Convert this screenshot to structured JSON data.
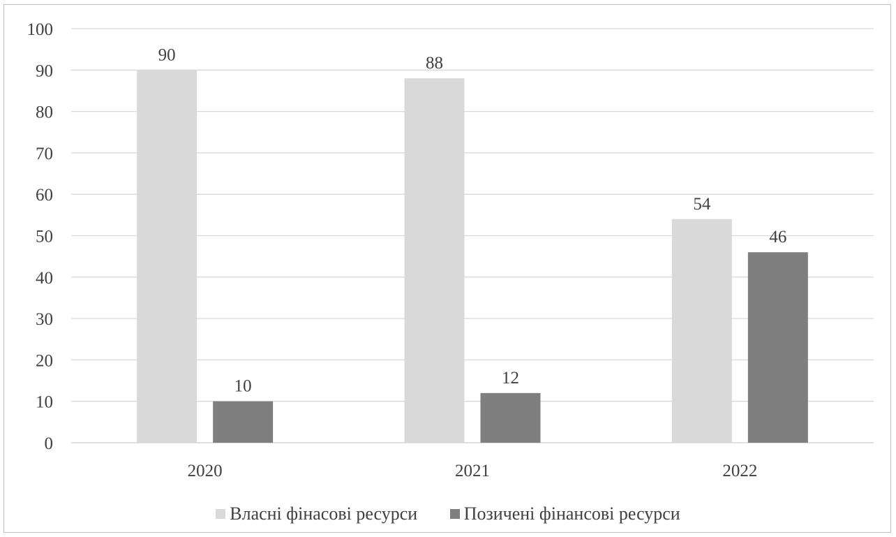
{
  "chart_data": {
    "type": "bar",
    "categories": [
      "2020",
      "2021",
      "2022"
    ],
    "series": [
      {
        "name": "Власні фінасові ресурси",
        "values": [
          90,
          88,
          54
        ],
        "color": "#d9d9d9"
      },
      {
        "name": "Позичені фінансові ресурси",
        "values": [
          10,
          12,
          46
        ],
        "color": "#7f7f7f"
      }
    ],
    "ylim": [
      0,
      100
    ],
    "yticks": [
      0,
      10,
      20,
      30,
      40,
      50,
      60,
      70,
      80,
      90,
      100
    ],
    "grid": true,
    "data_labels": true,
    "legend_position": "bottom",
    "title": "",
    "xlabel": "",
    "ylabel": ""
  }
}
